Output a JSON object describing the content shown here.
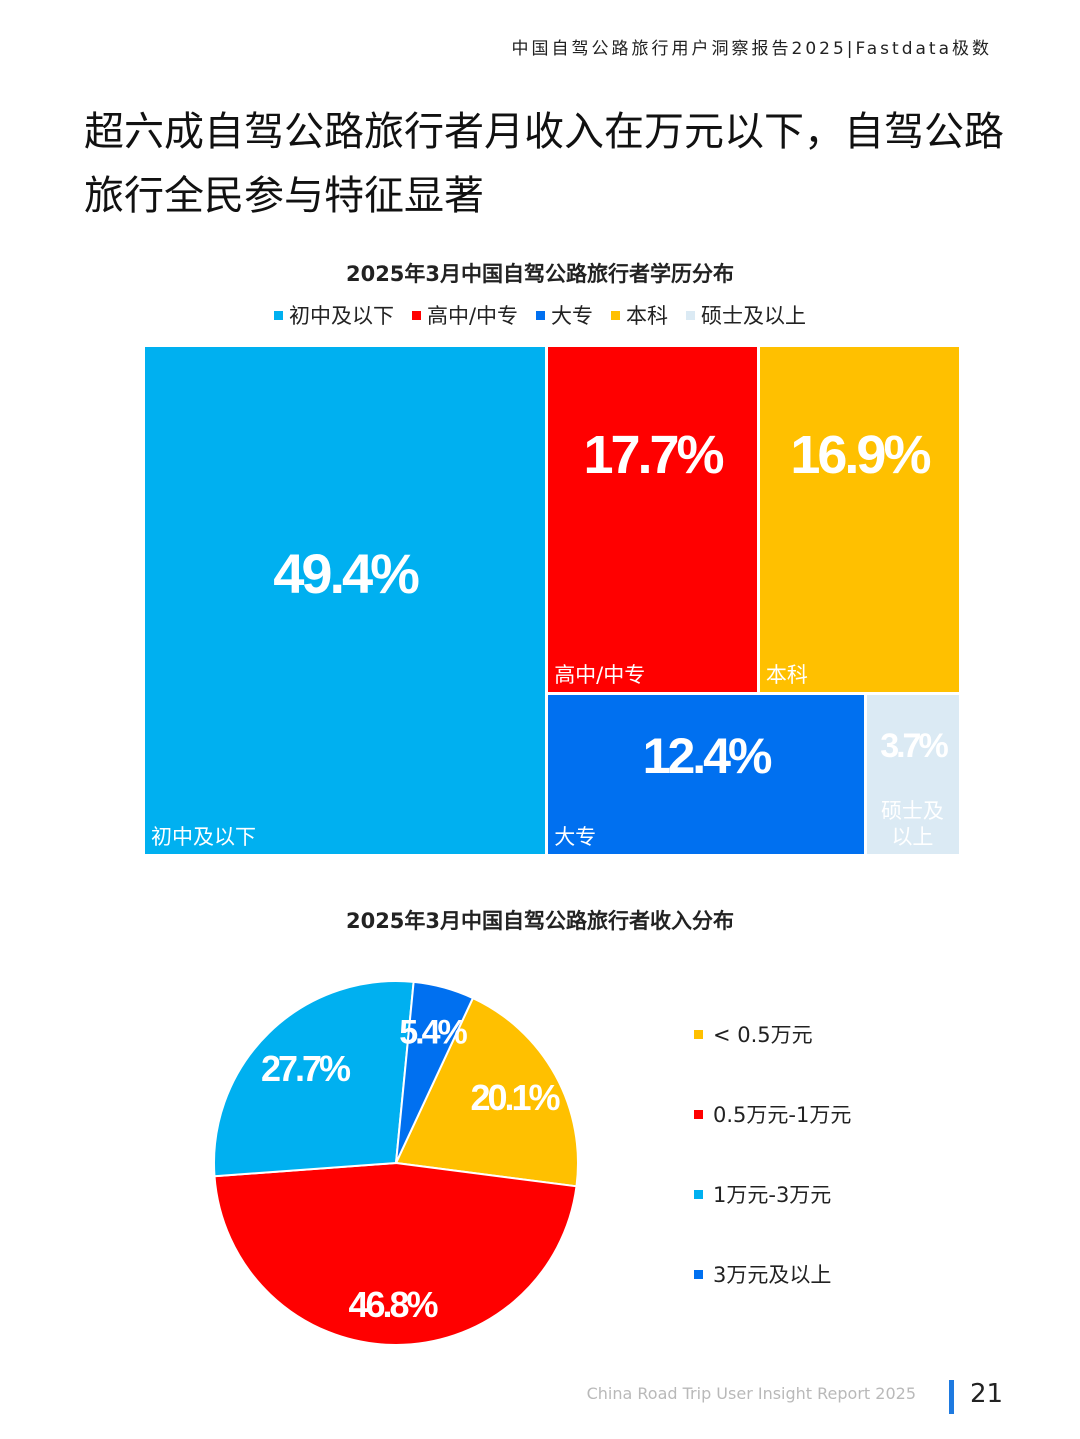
{
  "header": {
    "text": "中国自驾公路旅行用户洞察报告2025|Fastdata极数"
  },
  "headline": "超六成自驾公路旅行者月收入在万元以下，自驾公路旅行全民参与特征显著",
  "footer": {
    "text": "China Road Trip User Insight Report 2025",
    "page": "21"
  },
  "chart_data": [
    {
      "type": "treemap",
      "title": "2025年3月中国自驾公路旅行者学历分布",
      "legend_position": "top",
      "categories": [
        "初中及以下",
        "高中/中专",
        "大专",
        "本科",
        "硕士及以上"
      ],
      "values": [
        49.4,
        17.7,
        12.4,
        16.9,
        3.7
      ],
      "value_labels": [
        "49.4%",
        "17.7%",
        "12.4%",
        "16.9%",
        "3.7%"
      ],
      "cell_labels": [
        "初中及以下",
        "高中/中专",
        "大专",
        "本科",
        "硕士及\n以上"
      ],
      "colors": [
        "#00b0f0",
        "#ff0000",
        "#0070f0",
        "#ffc000",
        "#dbeaf4"
      ]
    },
    {
      "type": "pie",
      "title": "2025年3月中国自驾公路旅行者收入分布",
      "legend_position": "right",
      "categories": [
        "< 0.5万元",
        "0.5万元-1万元",
        "1万元-3万元",
        "3万元及以上"
      ],
      "values": [
        20.1,
        46.8,
        27.7,
        5.4
      ],
      "value_labels": [
        "20.1%",
        "46.8%",
        "27.7%",
        "5.4%"
      ],
      "colors": [
        "#ffc000",
        "#ff0000",
        "#00b0f0",
        "#0070f0"
      ]
    }
  ]
}
